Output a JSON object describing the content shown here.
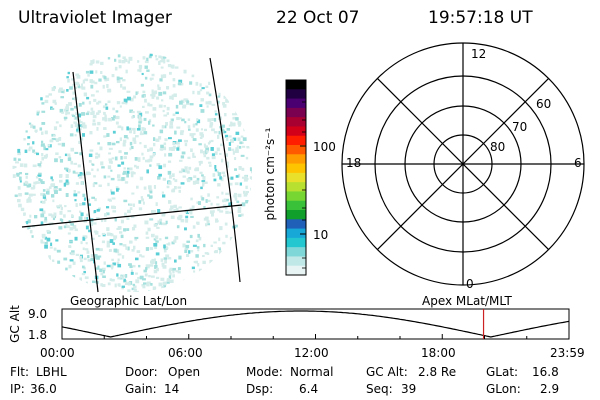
{
  "header": {
    "instrument": "Ultraviolet Imager",
    "date": "22 Oct 07",
    "time": "19:57:18 UT"
  },
  "image_panel": {
    "label": "Geographic Lat/Lon"
  },
  "colorbar": {
    "unit_label": "photon cm⁻²s⁻¹",
    "ticks": [
      "100",
      "10"
    ],
    "colors": [
      "#e8f4f4",
      "#bfe8e6",
      "#7fd7d7",
      "#22c7cf",
      "#18a8d8",
      "#2060b8",
      "#0f9f2a",
      "#39c13a",
      "#78d633",
      "#b8e030",
      "#e8e02a",
      "#ffc400",
      "#ff9c00",
      "#ff5a00",
      "#ff1f00",
      "#d20019",
      "#a80030",
      "#7a0050",
      "#4a0070",
      "#200040",
      "#000000"
    ]
  },
  "polar_panel": {
    "label": "Apex MLat/MLT",
    "mlt_labels": {
      "top": "12",
      "left": "18",
      "right": "6",
      "bottom": "0"
    },
    "lat_labels": [
      "60",
      "70",
      "80"
    ]
  },
  "altitude_plot": {
    "ylabel": "GC Alt",
    "y_ticks": [
      "9.0",
      "1.8"
    ],
    "x_ticks": [
      "00:00",
      "06:00",
      "12:00",
      "18:00",
      "23:59"
    ],
    "current_time_hours": 19.955,
    "marker_color": "#cc2222"
  },
  "status": {
    "filter_label": "Flt:",
    "filter_value": "LBHL",
    "door_label": "Door:",
    "door_value": "Open",
    "mode_label": "Mode:",
    "mode_value": "Normal",
    "gcalt_label": "GC Alt:",
    "gcalt_value": "2.8 Re",
    "glat_label": "GLat:",
    "glat_value": "16.8",
    "ip_label": "IP:",
    "ip_value": "36.0",
    "gain_label": "Gain:",
    "gain_value": "14",
    "dsp_label": "Dsp:",
    "dsp_value": "6.4",
    "seq_label": "Seq:",
    "seq_value": "39",
    "glon_label": "GLon:",
    "glon_value": "2.9"
  }
}
